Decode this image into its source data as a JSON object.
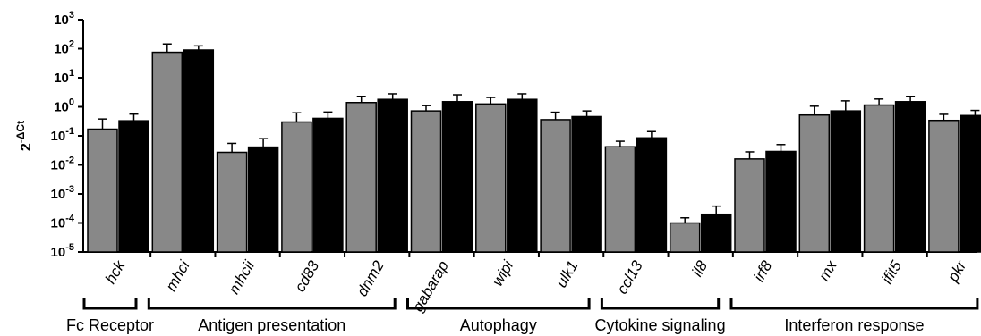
{
  "chart_data": {
    "type": "bar",
    "yscale": "log",
    "ylim": [
      1e-05,
      1000
    ],
    "ylabel": {
      "base": "2",
      "exponent": "-ΔCt"
    },
    "yticks": [
      {
        "base": "10",
        "exp": "3"
      },
      {
        "base": "10",
        "exp": "2"
      },
      {
        "base": "10",
        "exp": "1"
      },
      {
        "base": "10",
        "exp": "0"
      },
      {
        "base": "10",
        "exp": "-1"
      },
      {
        "base": "10",
        "exp": "-2"
      },
      {
        "base": "10",
        "exp": "-3"
      },
      {
        "base": "10",
        "exp": "-4"
      },
      {
        "base": "10",
        "exp": "-5"
      }
    ],
    "categories": [
      "hck",
      "mhci",
      "mhcii",
      "cd83",
      "dnm2",
      "gabarap",
      "wipi",
      "ulk1",
      "ccl13",
      "il8",
      "irf8",
      "mx",
      "ifit5",
      "pkr"
    ],
    "series": [
      {
        "color": "#888888",
        "values": [
          0.17,
          75,
          0.027,
          0.3,
          1.4,
          0.72,
          1.25,
          0.36,
          0.042,
          0.0001,
          0.016,
          0.52,
          1.15,
          0.34
        ],
        "error_upper": [
          0.38,
          145,
          0.055,
          0.62,
          2.3,
          1.1,
          2.1,
          0.65,
          0.065,
          0.00015,
          0.028,
          1.05,
          1.85,
          0.55
        ]
      },
      {
        "color": "#000000",
        "values": [
          0.33,
          90,
          0.041,
          0.4,
          1.8,
          1.5,
          1.8,
          0.46,
          0.085,
          0.0002,
          0.029,
          0.72,
          1.5,
          0.5
        ],
        "error_upper": [
          0.56,
          125,
          0.08,
          0.66,
          2.8,
          2.6,
          2.8,
          0.72,
          0.14,
          0.00038,
          0.05,
          1.6,
          2.3,
          0.75
        ]
      }
    ],
    "groups": [
      {
        "label": "Fc Receptor",
        "start": 0,
        "end": 0
      },
      {
        "label": "Antigen presentation",
        "start": 1,
        "end": 4
      },
      {
        "label": "Autophagy",
        "start": 5,
        "end": 7
      },
      {
        "label": "Cytokine signaling",
        "start": 8,
        "end": 9
      },
      {
        "label": "Interferon response",
        "start": 10,
        "end": 13
      }
    ],
    "grid": false,
    "legend": "none"
  }
}
